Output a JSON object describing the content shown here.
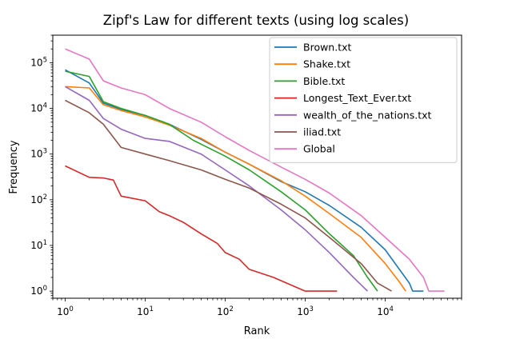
{
  "chart_data": {
    "type": "line",
    "title": "Zipf's Law for different texts (using log scales)",
    "xlabel": "Rank",
    "ylabel": "Frequency",
    "xscale": "log",
    "yscale": "log",
    "xlim": [
      0.7,
      90000
    ],
    "ylim": [
      0.7,
      400000
    ],
    "x_ticks": [
      {
        "value": 1,
        "base": "10",
        "exp": "0"
      },
      {
        "value": 10,
        "base": "10",
        "exp": "1"
      },
      {
        "value": 100,
        "base": "10",
        "exp": "2"
      },
      {
        "value": 1000,
        "base": "10",
        "exp": "3"
      },
      {
        "value": 10000,
        "base": "10",
        "exp": "4"
      }
    ],
    "y_ticks": [
      {
        "value": 1,
        "base": "10",
        "exp": "0"
      },
      {
        "value": 10,
        "base": "10",
        "exp": "1"
      },
      {
        "value": 100,
        "base": "10",
        "exp": "2"
      },
      {
        "value": 1000,
        "base": "10",
        "exp": "3"
      },
      {
        "value": 10000,
        "base": "10",
        "exp": "4"
      },
      {
        "value": 100000,
        "base": "10",
        "exp": "5"
      }
    ],
    "legend_position": "top-right",
    "grid": false,
    "series": [
      {
        "name": "Brown.txt",
        "color": "#1f77b4",
        "points": [
          [
            1,
            70000
          ],
          [
            2,
            36000
          ],
          [
            3,
            13000
          ],
          [
            5,
            9500
          ],
          [
            10,
            7000
          ],
          [
            20,
            4500
          ],
          [
            50,
            2100
          ],
          [
            100,
            1100
          ],
          [
            200,
            600
          ],
          [
            500,
            250
          ],
          [
            1000,
            150
          ],
          [
            2000,
            75
          ],
          [
            5000,
            25
          ],
          [
            10000,
            8
          ],
          [
            15000,
            3
          ],
          [
            20000,
            1.5
          ],
          [
            22000,
            1
          ],
          [
            30000,
            1
          ]
        ]
      },
      {
        "name": "Shake.txt",
        "color": "#ff7f0e",
        "points": [
          [
            1,
            30000
          ],
          [
            2,
            28000
          ],
          [
            3,
            12000
          ],
          [
            5,
            9000
          ],
          [
            10,
            6500
          ],
          [
            20,
            4300
          ],
          [
            50,
            2200
          ],
          [
            100,
            1100
          ],
          [
            200,
            600
          ],
          [
            500,
            260
          ],
          [
            1000,
            120
          ],
          [
            2000,
            50
          ],
          [
            5000,
            15
          ],
          [
            10000,
            4
          ],
          [
            15000,
            1.6
          ],
          [
            18000,
            1
          ]
        ]
      },
      {
        "name": "Bible.txt",
        "color": "#2ca02c",
        "points": [
          [
            1,
            65000
          ],
          [
            2,
            50000
          ],
          [
            3,
            14000
          ],
          [
            5,
            10000
          ],
          [
            10,
            7000
          ],
          [
            20,
            4500
          ],
          [
            40,
            2000
          ],
          [
            100,
            900
          ],
          [
            200,
            450
          ],
          [
            500,
            150
          ],
          [
            1000,
            60
          ],
          [
            2000,
            18
          ],
          [
            4000,
            6
          ],
          [
            6000,
            2
          ],
          [
            8000,
            1
          ]
        ]
      },
      {
        "name": "Longest_Text_Ever.txt",
        "color": "#d62728",
        "points": [
          [
            1,
            550
          ],
          [
            2,
            310
          ],
          [
            3,
            300
          ],
          [
            4,
            270
          ],
          [
            5,
            120
          ],
          [
            10,
            95
          ],
          [
            15,
            55
          ],
          [
            20,
            45
          ],
          [
            30,
            32
          ],
          [
            50,
            18
          ],
          [
            80,
            11
          ],
          [
            100,
            7
          ],
          [
            150,
            5
          ],
          [
            200,
            3
          ],
          [
            400,
            2
          ],
          [
            1000,
            1
          ],
          [
            2500,
            1
          ]
        ]
      },
      {
        "name": "wealth_of_the_nations.txt",
        "color": "#9467bd",
        "points": [
          [
            1,
            30000
          ],
          [
            2,
            15000
          ],
          [
            3,
            6000
          ],
          [
            5,
            3500
          ],
          [
            10,
            2200
          ],
          [
            20,
            1900
          ],
          [
            50,
            1000
          ],
          [
            100,
            450
          ],
          [
            200,
            200
          ],
          [
            500,
            60
          ],
          [
            1000,
            22
          ],
          [
            2000,
            7
          ],
          [
            4000,
            2
          ],
          [
            6000,
            1
          ]
        ]
      },
      {
        "name": "iliad.txt",
        "color": "#8c564b",
        "points": [
          [
            1,
            15000
          ],
          [
            2,
            8000
          ],
          [
            3,
            4500
          ],
          [
            5,
            1400
          ],
          [
            10,
            1000
          ],
          [
            20,
            720
          ],
          [
            50,
            450
          ],
          [
            100,
            280
          ],
          [
            200,
            180
          ],
          [
            500,
            80
          ],
          [
            1000,
            40
          ],
          [
            2000,
            15
          ],
          [
            5000,
            4
          ],
          [
            8000,
            1.5
          ],
          [
            12000,
            1
          ]
        ]
      },
      {
        "name": "Global",
        "color": "#e377c2",
        "points": [
          [
            1,
            200000
          ],
          [
            2,
            120000
          ],
          [
            3,
            40000
          ],
          [
            5,
            28000
          ],
          [
            10,
            20000
          ],
          [
            20,
            10000
          ],
          [
            50,
            5000
          ],
          [
            100,
            2400
          ],
          [
            200,
            1200
          ],
          [
            500,
            520
          ],
          [
            1000,
            280
          ],
          [
            2000,
            140
          ],
          [
            5000,
            45
          ],
          [
            10000,
            15
          ],
          [
            20000,
            5
          ],
          [
            30000,
            2
          ],
          [
            35000,
            1
          ],
          [
            55000,
            1
          ]
        ]
      }
    ]
  }
}
